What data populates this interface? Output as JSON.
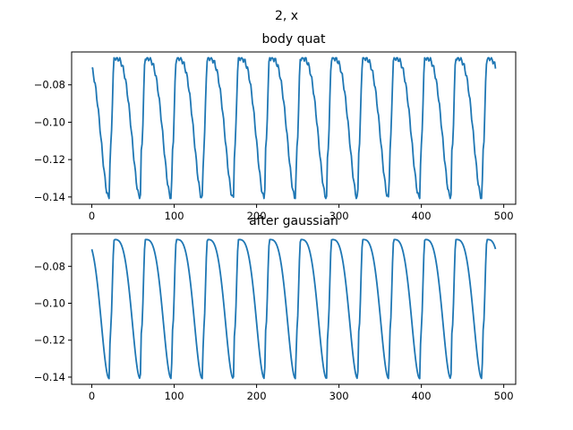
{
  "figure": {
    "suptitle": "2, x"
  },
  "chart_data": [
    {
      "type": "line",
      "title": "body quat",
      "xlabel": "",
      "ylabel": "",
      "xlim": [
        -24.5,
        514.5
      ],
      "ylim": [
        -0.1439,
        -0.0624
      ],
      "xticks": [
        0,
        100,
        200,
        300,
        400,
        500
      ],
      "xtick_labels": [
        "0",
        "100",
        "200",
        "300",
        "400",
        "500"
      ],
      "yticks": [
        -0.14,
        -0.12,
        -0.1,
        -0.08
      ],
      "ytick_labels": [
        "−0.14",
        "−0.12",
        "−0.10",
        "−0.08"
      ],
      "grid": false,
      "legend": "none",
      "period": 37.7,
      "peak_x": 65,
      "trough_x": 21,
      "x_range": [
        0,
        490
      ],
      "y_max": -0.0655,
      "y_min": -0.1408,
      "series": [
        {
          "color": "#1f77b4",
          "smoothed": false
        }
      ]
    },
    {
      "type": "line",
      "title": "after gaussian",
      "xlabel": "",
      "ylabel": "",
      "xlim": [
        -24.5,
        514.5
      ],
      "ylim": [
        -0.1439,
        -0.0624
      ],
      "xticks": [
        0,
        100,
        200,
        300,
        400,
        500
      ],
      "xtick_labels": [
        "0",
        "100",
        "200",
        "300",
        "400",
        "500"
      ],
      "yticks": [
        -0.14,
        -0.12,
        -0.1,
        -0.08
      ],
      "ytick_labels": [
        "−0.14",
        "−0.12",
        "−0.10",
        "−0.08"
      ],
      "grid": false,
      "legend": "none",
      "period": 37.7,
      "peak_x": 65,
      "trough_x": 21,
      "x_range": [
        0,
        490
      ],
      "y_max": -0.0655,
      "y_min": -0.1408,
      "series": [
        {
          "color": "#1f77b4",
          "smoothed": true
        }
      ]
    }
  ]
}
